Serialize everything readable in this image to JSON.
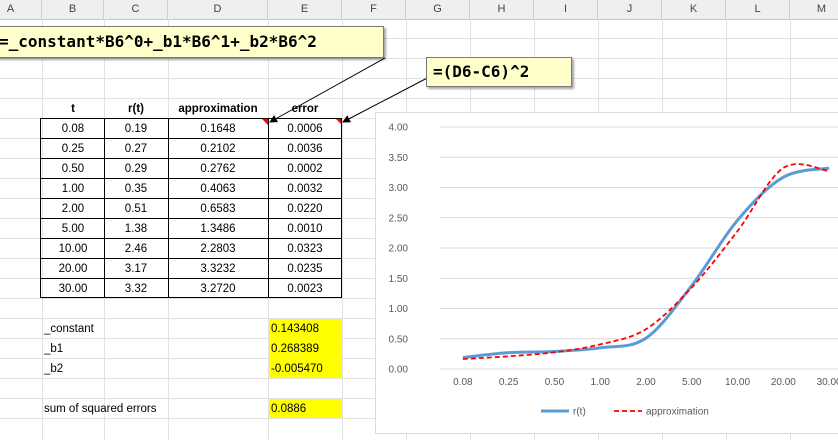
{
  "columns": [
    "A",
    "B",
    "C",
    "D",
    "E",
    "F",
    "G",
    "H",
    "I",
    "J",
    "K",
    "L",
    "M"
  ],
  "formula_callout_1": "=_constant*B6^0+_b1*B6^1+_b2*B6^2",
  "formula_callout_2": "=(D6-C6)^2",
  "table": {
    "headers": [
      "t",
      "r(t)",
      "approximation",
      "error"
    ],
    "rows": [
      [
        "0.08",
        "0.19",
        "0.1648",
        "0.0006"
      ],
      [
        "0.25",
        "0.27",
        "0.2102",
        "0.0036"
      ],
      [
        "0.50",
        "0.29",
        "0.2762",
        "0.0002"
      ],
      [
        "1.00",
        "0.35",
        "0.4063",
        "0.0032"
      ],
      [
        "2.00",
        "0.51",
        "0.6583",
        "0.0220"
      ],
      [
        "5.00",
        "1.38",
        "1.3486",
        "0.0010"
      ],
      [
        "10.00",
        "2.46",
        "2.2803",
        "0.0323"
      ],
      [
        "20.00",
        "3.17",
        "3.3232",
        "0.0235"
      ],
      [
        "30.00",
        "3.32",
        "3.2720",
        "0.0023"
      ]
    ]
  },
  "params": [
    {
      "name": "_constant",
      "value": "0.143408"
    },
    {
      "name": "_b1",
      "value": "0.268389"
    },
    {
      "name": "_b2",
      "value": "-0.005470"
    }
  ],
  "sse": {
    "label": "sum of squared errors",
    "value": "0.0886"
  },
  "colors": {
    "highlight": "#ffff00",
    "rt": "#5b9bd5",
    "approx": "#ff0000",
    "callout_bg": "#ffffcc"
  },
  "chart_data": {
    "type": "line",
    "categories": [
      "0.08",
      "0.25",
      "0.50",
      "1.00",
      "2.00",
      "5.00",
      "10.00",
      "20.00",
      "30.00"
    ],
    "series": [
      {
        "name": "r(t)",
        "values": [
          0.19,
          0.27,
          0.29,
          0.35,
          0.51,
          1.38,
          2.46,
          3.17,
          3.32
        ]
      },
      {
        "name": "approximation",
        "values": [
          0.1648,
          0.2102,
          0.2762,
          0.4063,
          0.6583,
          1.3486,
          2.2803,
          3.3232,
          3.272
        ]
      }
    ],
    "yticks": [
      "0.00",
      "0.50",
      "1.00",
      "1.50",
      "2.00",
      "2.50",
      "3.00",
      "3.50",
      "4.00"
    ],
    "ylim": [
      0,
      4
    ],
    "legend": "bottom",
    "grid": "horizontal"
  }
}
